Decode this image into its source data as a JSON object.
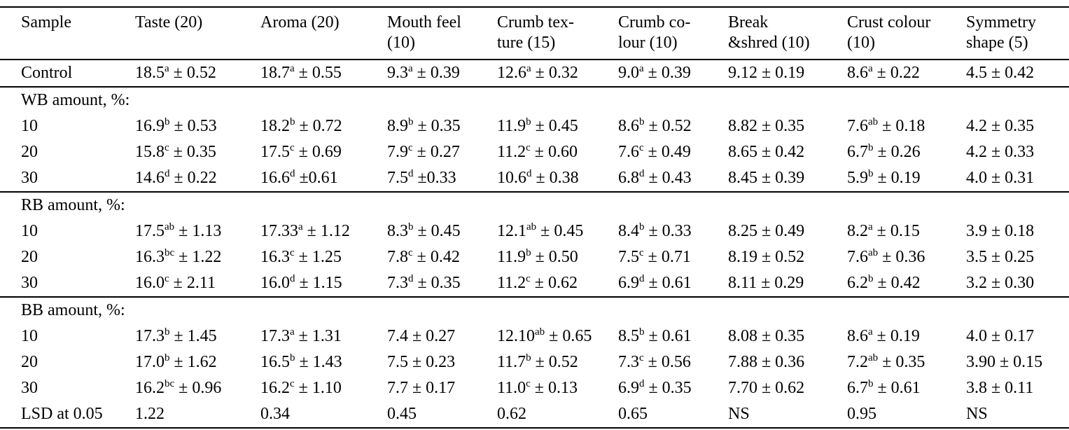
{
  "page": {
    "background_color": "#ffffff",
    "text_color": "#000000",
    "rule_color": "#000000"
  },
  "table": {
    "columns": [
      "Sample",
      "Taste (20)",
      "Aroma (20)",
      "Mouth feel\n(10)",
      "Crumb tex-\nture (15)",
      "Crumb co-\nlour (10)",
      "Break\n&shred (10)",
      "Crust colour\n(10)",
      "Symmetry\nshape (5)"
    ],
    "sections": [
      {
        "label": null,
        "rows": [
          [
            "Control",
            "18.5^{a} ± 0.52",
            "18.7^{a} ± 0.55",
            "9.3^{a} ± 0.39",
            "12.6^{a} ± 0.32",
            "9.0^{a} ± 0.39",
            "9.12 ± 0.19",
            "8.6^{a} ± 0.22",
            "4.5 ± 0.42"
          ]
        ]
      },
      {
        "label": "WB amount, %:",
        "rows": [
          [
            "10",
            "16.9^{b} ± 0.53",
            "18.2^{b} ± 0.72",
            "8.9^{b} ± 0.35",
            "11.9^{b} ± 0.45",
            "8.6^{b} ± 0.52",
            "8.82 ± 0.35",
            "7.6^{ab} ± 0.18",
            "4.2 ± 0.35"
          ],
          [
            "20",
            "15.8^{c} ± 0.35",
            "17.5^{c} ± 0.69",
            "7.9^{c} ± 0.27",
            "11.2^{c} ± 0.60",
            "7.6^{c} ± 0.49",
            "8.65 ± 0.42",
            "6.7^{b} ± 0.26",
            "4.2 ± 0.33"
          ],
          [
            "30",
            "14.6^{d} ± 0.22",
            "16.6^{d} ±0.61",
            "7.5^{d} ±0.33",
            "10.6^{d} ± 0.38",
            "6.8^{d} ± 0.43",
            "8.45 ± 0.39",
            "5.9^{b} ± 0.19",
            "4.0 ± 0.31"
          ]
        ]
      },
      {
        "label": "RB amount, %:",
        "rows": [
          [
            "10",
            "17.5^{ab} ± 1.13",
            "17.33^{a} ± 1.12",
            "8.3^{b} ± 0.45",
            "12.1^{ab} ± 0.45",
            "8.4^{b} ± 0.33",
            "8.25 ± 0.49",
            "8.2^{a} ± 0.15",
            "3.9 ± 0.18"
          ],
          [
            "20",
            "16.3^{bc} ± 1.22",
            "16.3^{c} ± 1.25",
            "7.8^{c} ± 0.42",
            "11.9^{b} ± 0.50",
            "7.5^{c} ± 0.71",
            "8.19 ± 0.52",
            "7.6^{ab} ± 0.36",
            "3.5 ± 0.25"
          ],
          [
            "30",
            "16.0^{c} ± 2.11",
            "16.0^{d} ± 1.15",
            "7.3^{d} ± 0.35",
            "11.2^{c} ± 0.62",
            "6.9^{d} ± 0.61",
            "8.11 ± 0.29",
            "6.2^{b} ± 0.42",
            "3.2 ± 0.30"
          ]
        ]
      },
      {
        "label": "BB amount, %:",
        "rows": [
          [
            "10",
            "17.3^{b} ± 1.45",
            "17.3^{a} ± 1.31",
            "7.4 ± 0.27",
            "12.10^{ab} ± 0.65",
            "8.5^{b} ± 0.61",
            "8.08 ± 0.35",
            "8.6^{a} ± 0.19",
            "4.0 ± 0.17"
          ],
          [
            "20",
            "17.0^{b} ± 1.62",
            "16.5^{b} ± 1.43",
            "7.5 ± 0.23",
            "11.7^{b} ± 0.52",
            "7.3^{c} ± 0.56",
            "7.88 ± 0.36",
            "7.2^{ab} ± 0.35",
            "3.90 ± 0.15"
          ],
          [
            "30",
            "16.2^{bc} ± 0.96",
            "16.2^{c} ± 1.10",
            "7.7 ± 0.17",
            "11.0^{c} ± 0.13",
            "6.9^{d} ± 0.35",
            "7.70 ± 0.62",
            "6.7^{b} ± 0.61",
            "3.8 ± 0.11"
          ]
        ]
      }
    ],
    "footer_row": [
      "LSD at 0.05",
      "1.22",
      "0.34",
      "0.45",
      "0.62",
      "0.65",
      "NS",
      "0.95",
      "NS"
    ]
  }
}
